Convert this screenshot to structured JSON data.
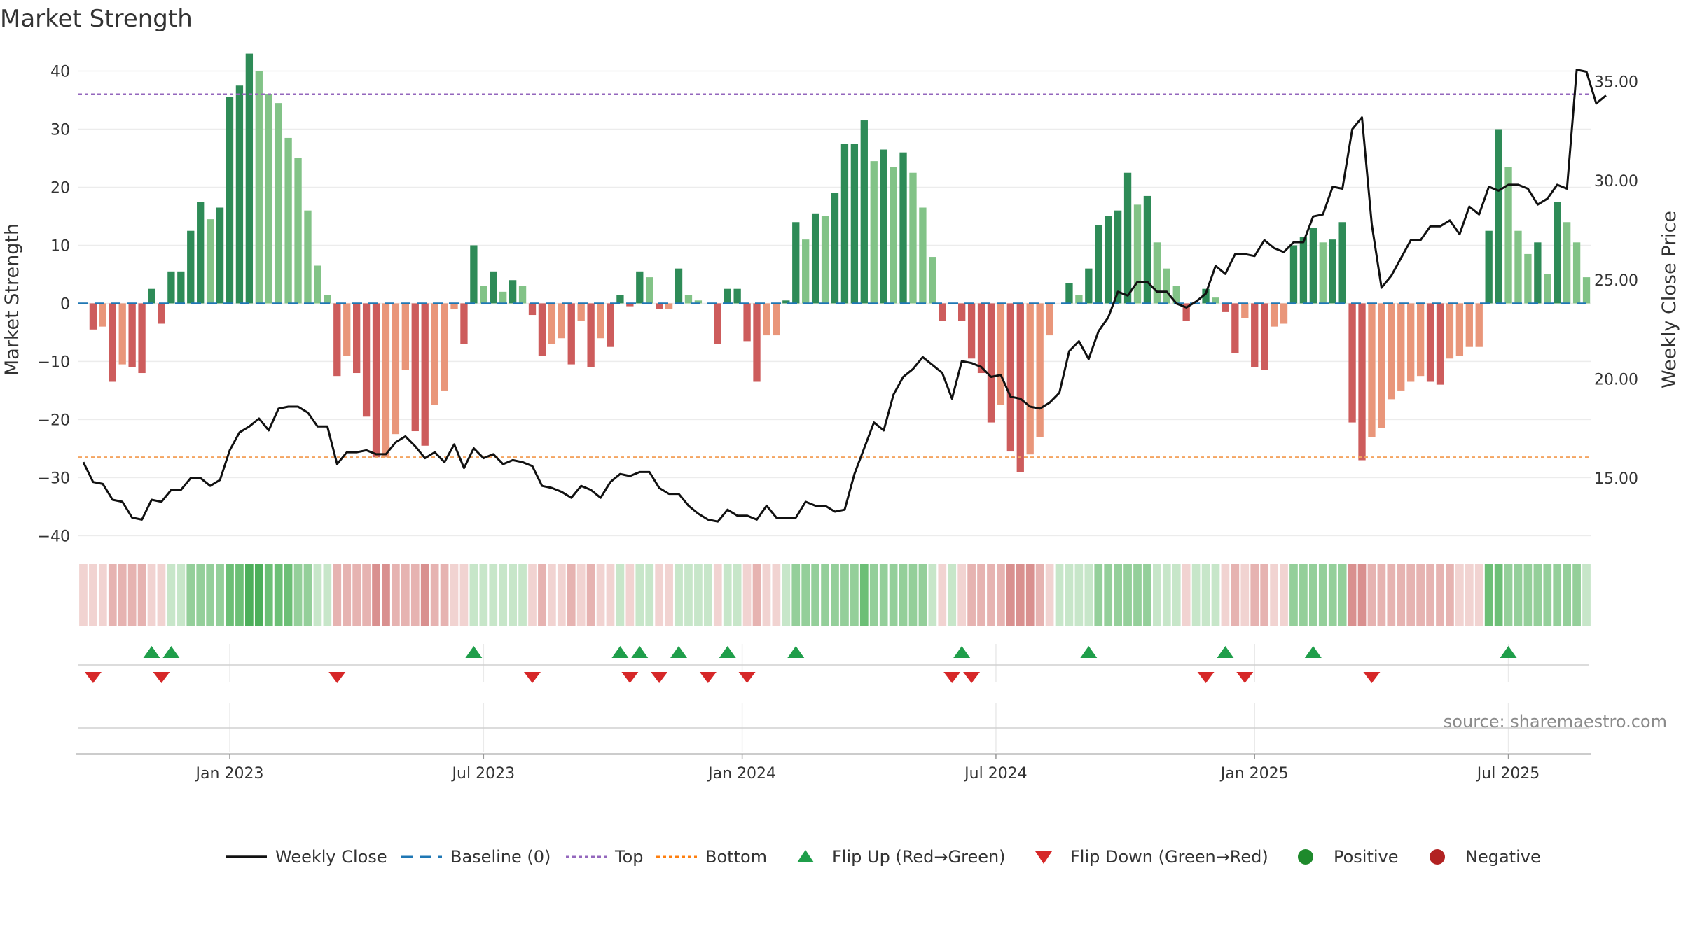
{
  "chart_data": {
    "type": "bar",
    "title": "Market Strength",
    "ylabel_left": "Market Strength",
    "ylabel_right": "Weekly Close Price",
    "left_axis": {
      "ylim": [
        -42,
        45
      ],
      "ticks": [
        40,
        30,
        20,
        10,
        0,
        -10,
        -20,
        -30,
        -40
      ]
    },
    "right_axis": {
      "ylim": [
        11.5,
        37.0
      ],
      "ticks": [
        "35.00",
        "30.00",
        "25.00",
        "20.00",
        "15.00"
      ]
    },
    "x_ticks": [
      {
        "label": "Jan 2023",
        "week": 15
      },
      {
        "label": "Jul 2023",
        "week": 41
      },
      {
        "label": "Jan 2024",
        "week": 67.5
      },
      {
        "label": "Jul 2024",
        "week": 93.5
      },
      {
        "label": "Jan 2025",
        "week": 120
      },
      {
        "label": "Jul 2025",
        "week": 146
      }
    ],
    "thresholds": {
      "top": 36,
      "bottom": -26.5,
      "baseline": 0
    },
    "strength": [
      0,
      -4.5,
      -4,
      -13.5,
      -10.5,
      -11,
      -12,
      2.5,
      -3.5,
      5.5,
      5.5,
      12.5,
      17.5,
      14.5,
      16.5,
      35.5,
      37.5,
      43,
      40,
      36,
      34.5,
      28.5,
      25,
      16,
      6.5,
      1.5,
      -12.5,
      -9,
      -12,
      -19.5,
      -26.5,
      -26.5,
      -22.5,
      -11.5,
      -22,
      -24.5,
      -17.5,
      -15,
      -1,
      -7,
      10,
      3,
      5.5,
      2,
      4,
      3,
      -2,
      -9,
      -7,
      -6,
      -10.5,
      -3,
      -11,
      -6,
      -7.5,
      1.5,
      -0.5,
      5.5,
      4.5,
      -1,
      -1,
      6,
      1.5,
      0.5,
      0,
      -7,
      2.5,
      2.5,
      -6.5,
      -13.5,
      -5.5,
      -5.5,
      0.5,
      14,
      11,
      15.5,
      15,
      19,
      27.5,
      27.5,
      31.5,
      24.5,
      26.5,
      23.5,
      26,
      22.5,
      16.5,
      8,
      -3,
      0,
      -3,
      -9.5,
      -12,
      -20.5,
      -17.5,
      -25.5,
      -29,
      -26,
      -23,
      -5.5,
      0,
      3.5,
      1.5,
      6,
      13.5,
      15,
      16,
      22.5,
      17,
      18.5,
      10.5,
      6,
      3,
      -3,
      0,
      2.5,
      1,
      -1.5,
      -8.5,
      -2.5,
      -11,
      -11.5,
      -4,
      -3.5,
      10,
      11.5,
      13,
      10.5,
      11,
      14,
      -20.5,
      -27,
      -23,
      -21.5,
      -16.5,
      -15,
      -13.5,
      -12.5,
      -13.5,
      -14,
      -9.5,
      -9,
      -7.5,
      -7.5,
      12.5,
      30,
      23.5,
      12.5,
      8.5,
      10.5,
      5,
      17.5,
      14,
      10.5,
      4.5
    ],
    "close": [
      15.8,
      14.8,
      14.7,
      13.9,
      13.8,
      13.0,
      12.9,
      13.9,
      13.8,
      14.4,
      14.4,
      15.0,
      15.0,
      14.6,
      14.9,
      16.4,
      17.3,
      17.6,
      18.0,
      17.4,
      18.5,
      18.6,
      18.6,
      18.3,
      17.6,
      17.6,
      15.7,
      16.3,
      16.3,
      16.4,
      16.2,
      16.2,
      16.8,
      17.1,
      16.6,
      16.0,
      16.3,
      15.8,
      16.7,
      15.5,
      16.5,
      16.0,
      16.2,
      15.7,
      15.9,
      15.8,
      15.6,
      14.6,
      14.5,
      14.3,
      14.0,
      14.6,
      14.4,
      14.0,
      14.8,
      15.2,
      15.1,
      15.3,
      15.3,
      14.5,
      14.2,
      14.2,
      13.6,
      13.2,
      12.9,
      12.8,
      13.4,
      13.1,
      13.1,
      12.9,
      13.6,
      13.0,
      13.0,
      13.0,
      13.8,
      13.6,
      13.6,
      13.3,
      13.4,
      15.2,
      16.5,
      17.8,
      17.4,
      19.2,
      20.1,
      20.5,
      21.1,
      20.7,
      20.3,
      19.0,
      20.9,
      20.8,
      20.6,
      20.1,
      20.2,
      19.1,
      19.0,
      18.6,
      18.5,
      18.8,
      19.3,
      21.4,
      21.9,
      21.0,
      22.4,
      23.1,
      24.4,
      24.2,
      24.9,
      24.9,
      24.4,
      24.4,
      23.8,
      23.6,
      23.9,
      24.3,
      25.7,
      25.3,
      26.3,
      26.3,
      26.2,
      27.0,
      26.6,
      26.4,
      26.9,
      26.9,
      28.2,
      28.3,
      29.7,
      29.6,
      32.6,
      33.2,
      27.8,
      24.6,
      25.2,
      26.1,
      27.0,
      27.0,
      27.7,
      27.7,
      28.0,
      27.3,
      28.7,
      28.3,
      29.7,
      29.5,
      29.8,
      29.8,
      29.6,
      28.8,
      29.1,
      29.8,
      29.6,
      35.6,
      35.5,
      33.9,
      34.3
    ],
    "heat_band_levels": [
      -1,
      -1,
      -1,
      -2,
      -2,
      -2,
      -2,
      -1,
      -1,
      1,
      1,
      2,
      2,
      2,
      2,
      3,
      3,
      4,
      4,
      3,
      3,
      3,
      2,
      2,
      1,
      1,
      -2,
      -2,
      -2,
      -2,
      -3,
      -3,
      -2,
      -2,
      -2,
      -3,
      -2,
      -2,
      -1,
      -1,
      1,
      1,
      1,
      1,
      1,
      1,
      -1,
      -2,
      -1,
      -1,
      -2,
      -1,
      -2,
      -1,
      -1,
      1,
      -1,
      1,
      1,
      -1,
      -1,
      1,
      1,
      1,
      1,
      -1,
      1,
      1,
      -1,
      -2,
      -1,
      -1,
      1,
      2,
      2,
      2,
      2,
      2,
      2,
      2,
      3,
      2,
      2,
      2,
      2,
      2,
      2,
      1,
      -1,
      1,
      -1,
      -2,
      -2,
      -2,
      -2,
      -3,
      -3,
      -3,
      -2,
      -1,
      1,
      1,
      1,
      1,
      2,
      2,
      2,
      2,
      2,
      2,
      1,
      1,
      1,
      -1,
      1,
      1,
      1,
      -1,
      -2,
      -1,
      -2,
      -2,
      -1,
      -1,
      2,
      2,
      2,
      2,
      2,
      2,
      -3,
      -3,
      -2,
      -2,
      -2,
      -2,
      -2,
      -2,
      -2,
      -2,
      -2,
      -1,
      -1,
      -1,
      3,
      3,
      2,
      2,
      2,
      2,
      2,
      2,
      2,
      2,
      1
    ],
    "flip_up_weeks": [
      7,
      9,
      40,
      55,
      57,
      61,
      66,
      73,
      90,
      103,
      117,
      126,
      146
    ],
    "flip_down_weeks": [
      1,
      8,
      26,
      46,
      56,
      59,
      64,
      68,
      89,
      91,
      115,
      119,
      132
    ],
    "legend": [
      {
        "label": "Weekly Close",
        "kind": "line",
        "color": "#111111"
      },
      {
        "label": "Baseline (0)",
        "kind": "dashed",
        "color": "#1f77b4"
      },
      {
        "label": "Top",
        "kind": "dotted",
        "color": "#9467bd"
      },
      {
        "label": "Bottom",
        "kind": "dotted",
        "color": "#ff7f0e"
      },
      {
        "label": "Flip Up (Red→Green)",
        "kind": "tri-up",
        "color": "#1f9e4a"
      },
      {
        "label": "Flip Down (Green→Red)",
        "kind": "tri-down",
        "color": "#d62728"
      },
      {
        "label": "Positive",
        "kind": "dot",
        "color": "#1e8a2c"
      },
      {
        "label": "Negative",
        "kind": "dot",
        "color": "#b22222"
      }
    ],
    "colors": {
      "pos_strong": "#2e8b57",
      "pos_light": "#82c387",
      "neg_strong": "#cd5c5c",
      "neg_light": "#e9967a",
      "baseline": "#1f77b4",
      "top": "#9467bd",
      "bottom": "#f4a460",
      "price": "#111111",
      "flip_up": "#1f9e4a",
      "flip_down": "#d62728"
    },
    "source": "source: sharemaestro.com"
  }
}
